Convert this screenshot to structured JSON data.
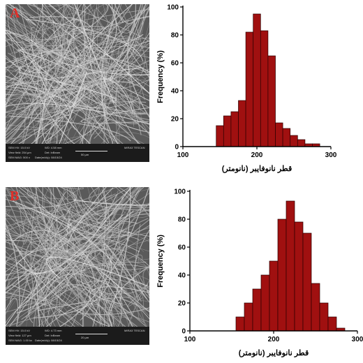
{
  "panels": [
    {
      "id": "A",
      "label": "A",
      "sem_info": {
        "hv": "SEM HV: 15.0 kV",
        "wd": "WD: 4.58 mm",
        "view_field": "View field: 254 µm",
        "det": "Det: InBeam",
        "scale_bar": "50 µm",
        "mag": "SEM MAG: 500 x",
        "date": "Date(m/d/y): 08/15/24",
        "device": "MIRA3 TESCAN"
      }
    },
    {
      "id": "B",
      "label": "B",
      "sem_info": {
        "hv": "SEM HV: 15.0 kV",
        "wd": "WD: 4.73 mm",
        "view_field": "View field: 127 µm",
        "det": "Det: InBeam",
        "scale_bar": "20 µm",
        "mag": "SEM MAG: 1.00 kx",
        "date": "Date(m/d/y): 08/15/24",
        "device": "MIRA3 TESCAN"
      }
    }
  ],
  "colors": {
    "bar_fill": "#a01010",
    "bar_stroke": "#2a0000",
    "sem_background": "#5a5a5a",
    "label_red": "#e0302a"
  },
  "chart_data": [
    {
      "type": "bar",
      "title": "",
      "xlabel": "قطر نانوفایبر (نانومتر)",
      "ylabel": "Frequency (%)",
      "xlim": [
        100,
        300
      ],
      "ylim": [
        0,
        100
      ],
      "xticks": [
        100,
        200,
        300
      ],
      "yticks": [
        0,
        20,
        40,
        60,
        80,
        100
      ],
      "bin_width": 10,
      "bin_starts": [
        145,
        155,
        165,
        175,
        185,
        195,
        205,
        215,
        225,
        235,
        245,
        255,
        265,
        275
      ],
      "values": [
        15,
        22,
        25,
        33,
        82,
        95,
        83,
        65,
        17,
        13,
        8,
        5,
        2,
        2
      ]
    },
    {
      "type": "bar",
      "title": "",
      "xlabel": "قطر نانوفایبر (نانومتر)",
      "ylabel": "Frequency (%)",
      "xlim": [
        100,
        300
      ],
      "ylim": [
        0,
        100
      ],
      "xticks": [
        100,
        200,
        300
      ],
      "yticks": [
        0,
        20,
        40,
        60,
        80,
        100
      ],
      "bin_width": 10,
      "bin_starts": [
        155,
        165,
        175,
        185,
        195,
        205,
        215,
        225,
        235,
        245,
        255,
        265,
        275
      ],
      "values": [
        10,
        20,
        30,
        40,
        50,
        80,
        93,
        78,
        70,
        34,
        20,
        10,
        2
      ]
    }
  ]
}
